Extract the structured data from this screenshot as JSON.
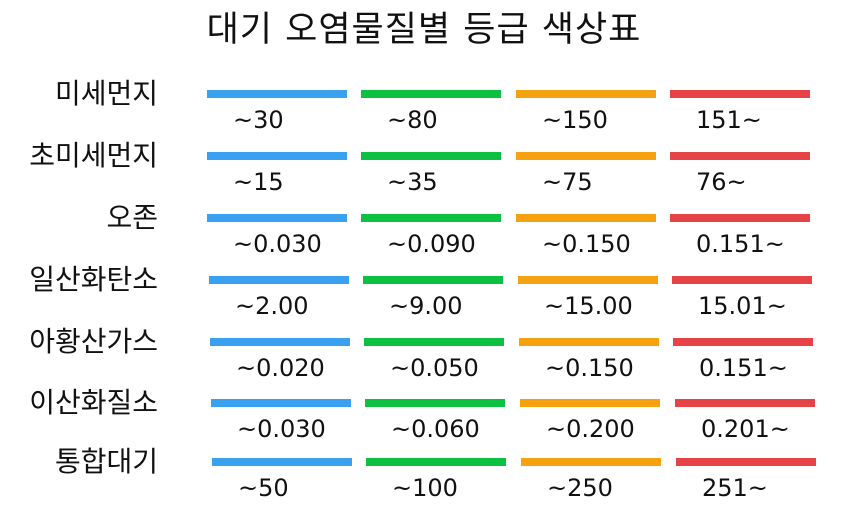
{
  "title": "대기 오염물질별 등급 색상표",
  "colors": {
    "good": "#3aa1f0",
    "normal": "#0cc041",
    "bad": "#f6a10f",
    "very_bad": "#e64346"
  },
  "pollutants": [
    {
      "name": "미세먼지",
      "thresholds": [
        "~30",
        "~80",
        "~150",
        "151~"
      ]
    },
    {
      "name": "초미세먼지",
      "thresholds": [
        "~15",
        "~35",
        "~75",
        "76~"
      ]
    },
    {
      "name": "오존",
      "thresholds": [
        "~0.030",
        "~0.090",
        "~0.150",
        "0.151~"
      ]
    },
    {
      "name": "일산화탄소",
      "thresholds": [
        "~2.00",
        "~9.00",
        "~15.00",
        "15.01~"
      ]
    },
    {
      "name": "아황산가스",
      "thresholds": [
        "~0.020",
        "~0.050",
        "~0.150",
        "0.151~"
      ]
    },
    {
      "name": "이산화질소",
      "thresholds": [
        "~0.030",
        "~0.060",
        "~0.200",
        "0.201~"
      ]
    },
    {
      "name": "통합대기",
      "thresholds": [
        "~50",
        "~100",
        "~250",
        "251~"
      ]
    }
  ]
}
